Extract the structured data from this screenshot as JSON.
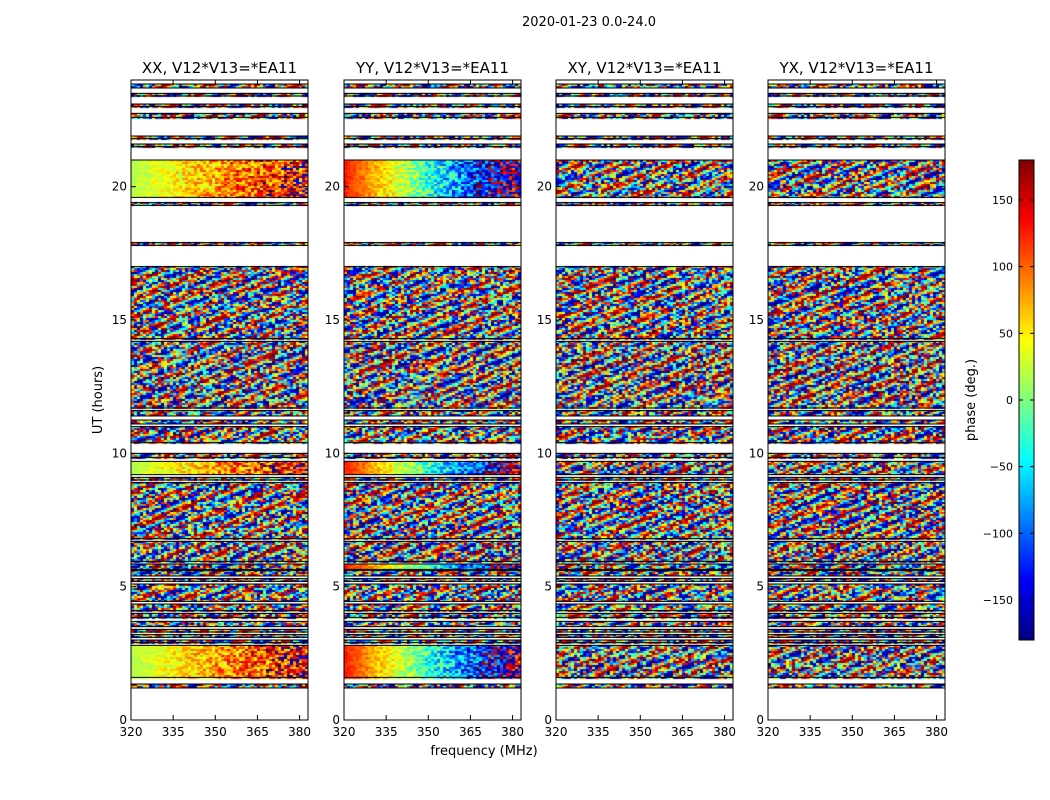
{
  "figure": {
    "suptitle": "2020-01-23 0.0-24.0"
  },
  "chart_data": {
    "type": "heatmap",
    "title": "2020-01-23 0.0-24.0",
    "xlabel": "frequency (MHz)",
    "ylabel": "UT (hours)",
    "xlim": [
      320,
      383
    ],
    "ylim": [
      0,
      24
    ],
    "xticks": [
      "320",
      "335",
      "350",
      "365",
      "380"
    ],
    "yticks": [
      "0",
      "5",
      "10",
      "15",
      "20"
    ],
    "panels": [
      {
        "title": "XX, V12*V13=*EA11",
        "pol": "XX"
      },
      {
        "title": "YY, V12*V13=*EA11",
        "pol": "YY"
      },
      {
        "title": "XY, V12*V13=*EA11",
        "pol": "XY"
      },
      {
        "title": "YX, V12*V13=*EA11",
        "pol": "YX"
      }
    ],
    "colorbar": {
      "label": "phase (deg.)",
      "range": [
        -180,
        180
      ],
      "colormap": "jet",
      "ticks": [
        150,
        100,
        50,
        0,
        -50,
        -100,
        -150
      ],
      "tick_labels": [
        "150",
        "100",
        "50",
        "0",
        "−50",
        "−100",
        "−150"
      ]
    },
    "data_bands_hours": [
      [
        1.2,
        1.35
      ],
      [
        1.6,
        2.8
      ],
      [
        2.9,
        3.0
      ],
      [
        3.1,
        3.2
      ],
      [
        3.3,
        3.4
      ],
      [
        3.5,
        3.7
      ],
      [
        3.85,
        4.0
      ],
      [
        4.1,
        4.35
      ],
      [
        4.45,
        5.1
      ],
      [
        5.2,
        5.3
      ],
      [
        5.4,
        5.6
      ],
      [
        5.65,
        5.85
      ],
      [
        5.95,
        6.7
      ],
      [
        6.8,
        8.9
      ],
      [
        9.0,
        9.1
      ],
      [
        9.2,
        9.7
      ],
      [
        9.85,
        10.0
      ],
      [
        10.4,
        11.0
      ],
      [
        11.1,
        11.25
      ],
      [
        11.4,
        11.6
      ],
      [
        11.7,
        14.2
      ],
      [
        14.3,
        17.0
      ],
      [
        17.8,
        17.9
      ],
      [
        19.3,
        19.4
      ],
      [
        19.6,
        21.0
      ],
      [
        21.5,
        21.6
      ],
      [
        21.8,
        21.9
      ],
      [
        22.6,
        22.75
      ],
      [
        23.0,
        23.1
      ],
      [
        23.4,
        23.5
      ],
      [
        23.7,
        23.85
      ]
    ],
    "coherent_bands_hours": [
      {
        "band": [
          1.6,
          2.8
        ],
        "panels": [
          "XX",
          "YY"
        ]
      },
      {
        "band": [
          9.2,
          9.7
        ],
        "panels": [
          "XX",
          "YY"
        ]
      },
      {
        "band": [
          19.6,
          21.0
        ],
        "panels": [
          "XX",
          "YY"
        ]
      },
      {
        "band": [
          5.65,
          5.85
        ],
        "panels": [
          "YY"
        ]
      }
    ]
  }
}
